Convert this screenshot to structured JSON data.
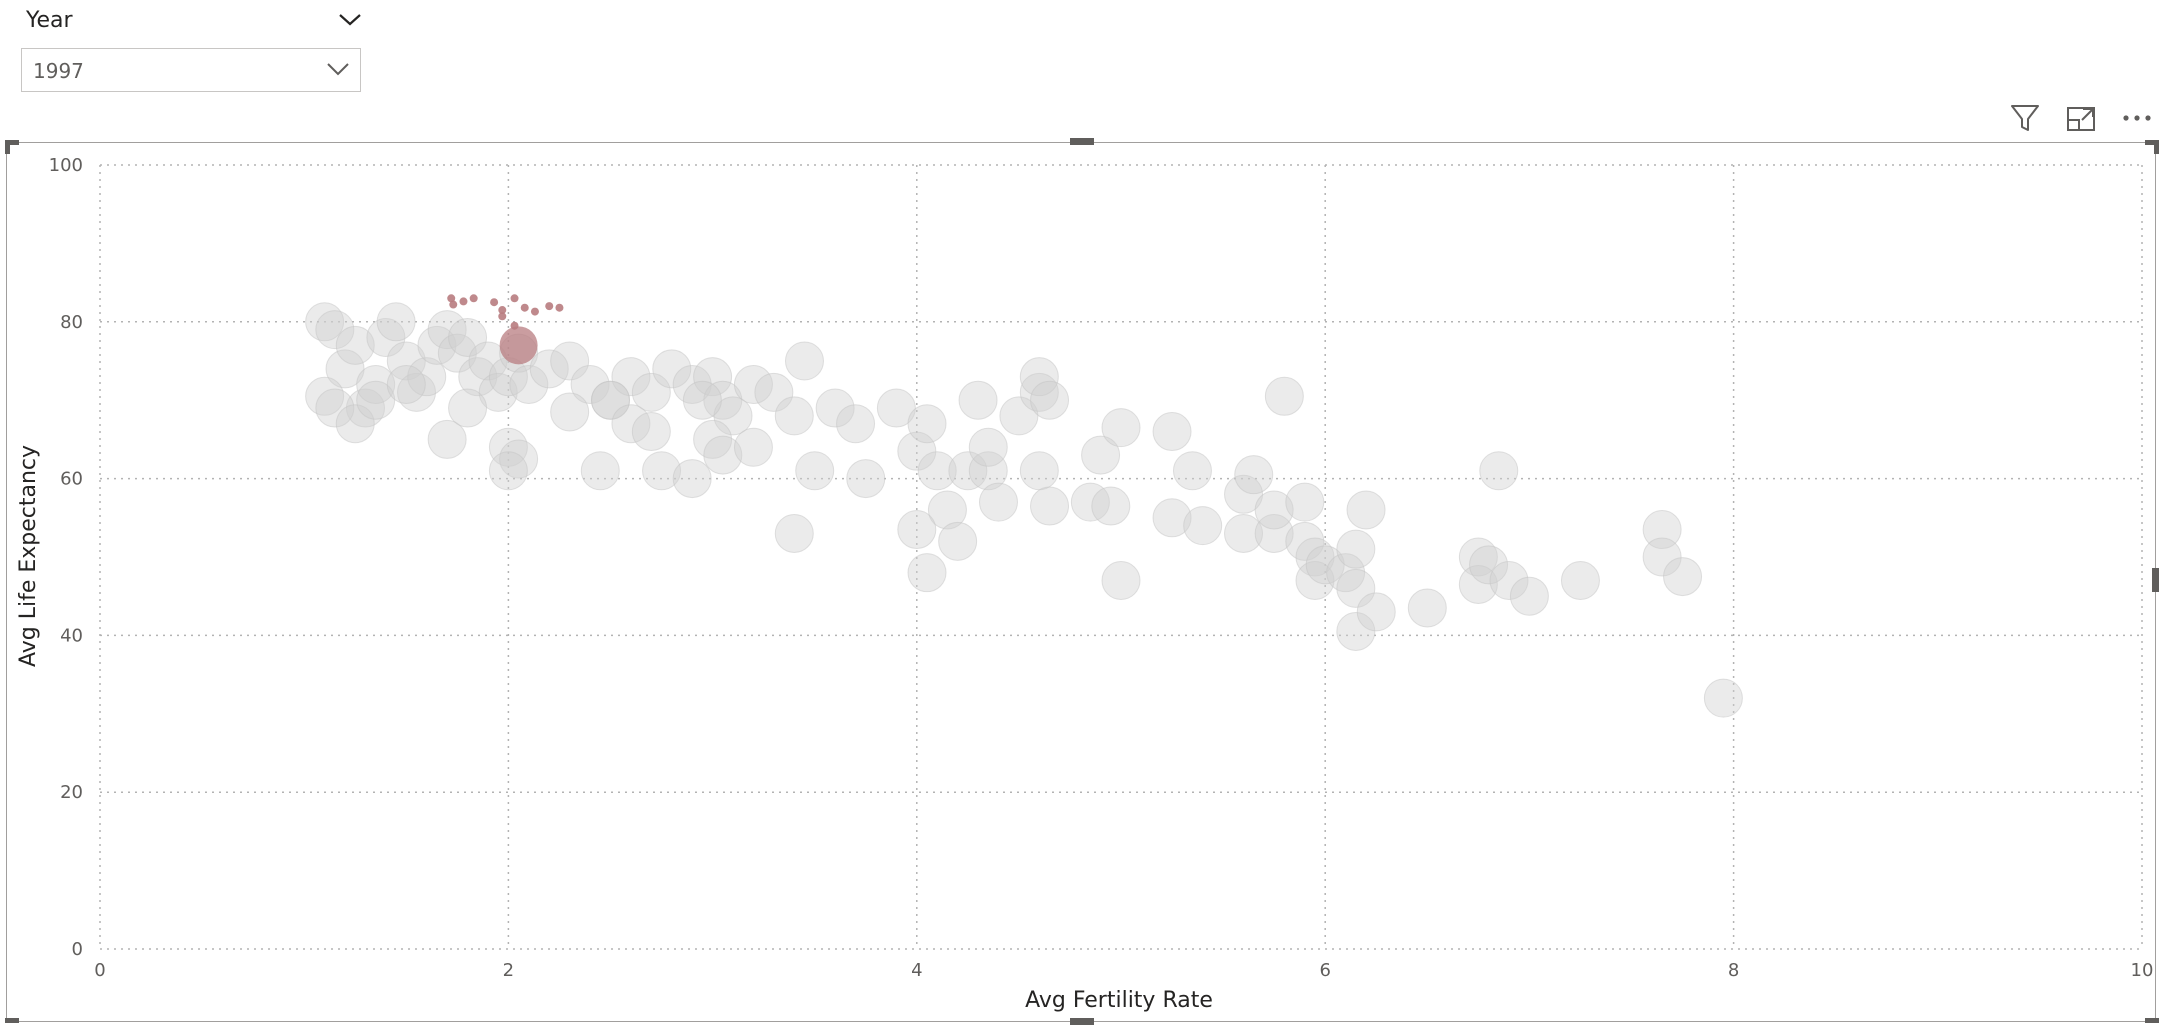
{
  "slicer": {
    "title": "Year",
    "selected": "1997",
    "icons": {
      "header": "chevron-down-icon",
      "dropdown": "chevron-down-icon"
    }
  },
  "visual_header": {
    "icons": [
      "filter-icon",
      "focus-mode-icon",
      "more-options-icon"
    ]
  },
  "colors": {
    "bubble": "#d0d0d0",
    "highlight": "#b87c80",
    "grid": "#b3b3b3",
    "text": "#605e5c"
  },
  "chart_data": {
    "type": "scatter",
    "xlabel": "Avg Fertility Rate",
    "ylabel": "Avg Life Expectancy",
    "xlim": [
      0,
      10
    ],
    "ylim": [
      0,
      100
    ],
    "xticks": [
      0,
      2,
      4,
      6,
      8,
      10
    ],
    "yticks": [
      0,
      20,
      40,
      60,
      80,
      100
    ],
    "grid": true,
    "legend": "none",
    "series": [
      {
        "points": [
          [
            1.1,
            80
          ],
          [
            1.15,
            79
          ],
          [
            1.2,
            74
          ],
          [
            1.25,
            77
          ],
          [
            1.3,
            69
          ],
          [
            1.35,
            72
          ],
          [
            1.4,
            78
          ],
          [
            1.45,
            80
          ],
          [
            1.5,
            75
          ],
          [
            1.55,
            71
          ],
          [
            1.6,
            73
          ],
          [
            1.65,
            77
          ],
          [
            1.7,
            79
          ],
          [
            1.75,
            76
          ],
          [
            1.8,
            78
          ],
          [
            1.85,
            73
          ],
          [
            1.9,
            75
          ],
          [
            1.95,
            71
          ],
          [
            2.0,
            73
          ],
          [
            2.05,
            76
          ],
          [
            2.1,
            72
          ],
          [
            2.2,
            74
          ],
          [
            2.3,
            75
          ],
          [
            2.4,
            72
          ],
          [
            2.5,
            70
          ],
          [
            2.6,
            73
          ],
          [
            2.7,
            71
          ],
          [
            2.8,
            74
          ],
          [
            2.9,
            72
          ],
          [
            3.0,
            73
          ],
          [
            3.05,
            70
          ],
          [
            3.1,
            68
          ],
          [
            3.2,
            72
          ],
          [
            3.3,
            71
          ],
          [
            1.1,
            70.5
          ],
          [
            1.15,
            69
          ],
          [
            1.25,
            67
          ],
          [
            1.35,
            70
          ],
          [
            1.5,
            72
          ],
          [
            1.7,
            65
          ],
          [
            1.8,
            69
          ],
          [
            2.0,
            64
          ],
          [
            2.05,
            62.5
          ],
          [
            2.0,
            61
          ],
          [
            2.3,
            68.5
          ],
          [
            2.45,
            61
          ],
          [
            2.5,
            70
          ],
          [
            2.6,
            67
          ],
          [
            2.7,
            66
          ],
          [
            2.75,
            61
          ],
          [
            2.9,
            60
          ],
          [
            2.95,
            70
          ],
          [
            3.0,
            65
          ],
          [
            3.05,
            63
          ],
          [
            3.2,
            64
          ],
          [
            3.4,
            68
          ],
          [
            3.45,
            75
          ],
          [
            3.5,
            61
          ],
          [
            3.6,
            69
          ],
          [
            3.7,
            67
          ],
          [
            3.75,
            60
          ],
          [
            3.9,
            69
          ],
          [
            4.0,
            63.5
          ],
          [
            4.05,
            67
          ],
          [
            4.1,
            61
          ],
          [
            4.15,
            56
          ],
          [
            4.2,
            52
          ],
          [
            4.25,
            61
          ],
          [
            4.3,
            70
          ],
          [
            4.35,
            61
          ],
          [
            4.35,
            64
          ],
          [
            4.4,
            57
          ],
          [
            4.5,
            68
          ],
          [
            4.6,
            71
          ],
          [
            4.6,
            73
          ],
          [
            4.65,
            70
          ],
          [
            4.6,
            61
          ],
          [
            4.65,
            56.5
          ],
          [
            4.85,
            57
          ],
          [
            4.9,
            63
          ],
          [
            5.0,
            66.5
          ],
          [
            4.95,
            56.5
          ],
          [
            5.0,
            47
          ],
          [
            5.25,
            66
          ],
          [
            5.25,
            55
          ],
          [
            5.35,
            61
          ],
          [
            5.4,
            54
          ],
          [
            5.6,
            53
          ],
          [
            5.6,
            58
          ],
          [
            5.65,
            60.5
          ],
          [
            5.75,
            53
          ],
          [
            5.75,
            56
          ],
          [
            5.8,
            70.5
          ],
          [
            5.9,
            52
          ],
          [
            5.9,
            57
          ],
          [
            5.95,
            50
          ],
          [
            5.95,
            47
          ],
          [
            6.0,
            49
          ],
          [
            6.1,
            48
          ],
          [
            6.15,
            46
          ],
          [
            6.15,
            40.5
          ],
          [
            6.15,
            51
          ],
          [
            6.2,
            56
          ],
          [
            6.25,
            43
          ],
          [
            6.5,
            43.5
          ],
          [
            6.75,
            50
          ],
          [
            6.75,
            46.5
          ],
          [
            6.8,
            49
          ],
          [
            6.85,
            61
          ],
          [
            6.9,
            47
          ],
          [
            7.0,
            45
          ],
          [
            7.25,
            47
          ],
          [
            7.65,
            53.5
          ],
          [
            7.65,
            50
          ],
          [
            7.75,
            47.5
          ],
          [
            7.95,
            32
          ],
          [
            3.4,
            53
          ],
          [
            4.0,
            53.5
          ],
          [
            4.05,
            48
          ]
        ]
      },
      {
        "points": [
          [
            1.72,
            83
          ],
          [
            1.73,
            82.2
          ],
          [
            1.78,
            82.6
          ],
          [
            1.83,
            83
          ],
          [
            1.93,
            82.5
          ],
          [
            1.97,
            81.5
          ],
          [
            2.03,
            83
          ],
          [
            2.08,
            81.8
          ],
          [
            2.13,
            81.3
          ],
          [
            2.2,
            82
          ],
          [
            2.25,
            81.8
          ],
          [
            1.97,
            80.7
          ],
          [
            2.03,
            79.5
          ],
          [
            2.05,
            77
          ]
        ]
      }
    ]
  }
}
